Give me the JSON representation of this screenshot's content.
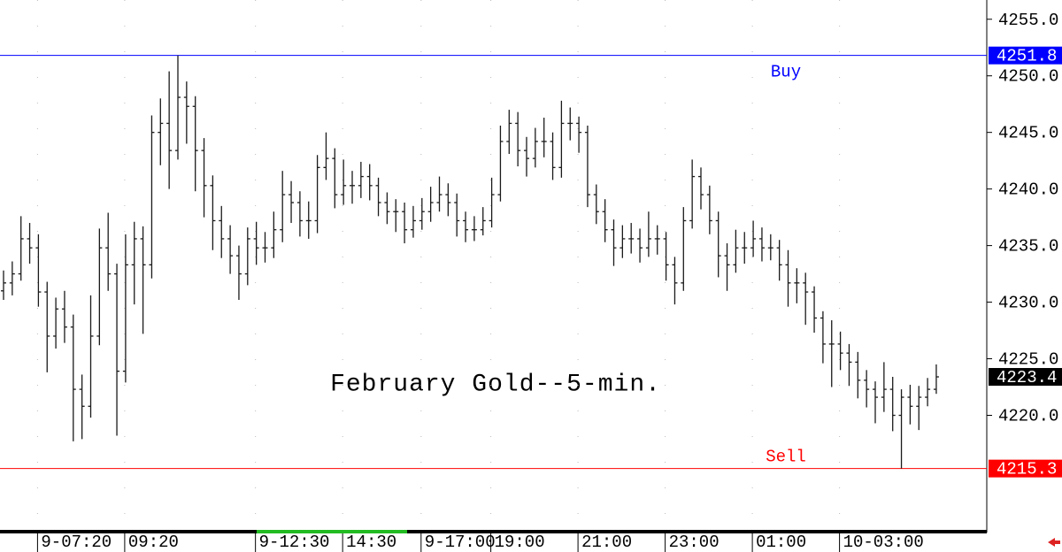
{
  "chart_data": {
    "type": "ohlc",
    "title": "February Gold--5-min.",
    "color": "#1a1a1a",
    "close_tag_color": "#000000",
    "categories": [
      null,
      null,
      null,
      null,
      "9-07:20",
      null,
      null,
      null,
      null,
      null,
      null,
      null,
      null,
      null,
      "09:20",
      null,
      null,
      null,
      null,
      null,
      null,
      null,
      null,
      null,
      null,
      null,
      null,
      null,
      null,
      "9-12:30",
      null,
      null,
      null,
      null,
      null,
      null,
      null,
      null,
      null,
      "14:30",
      null,
      null,
      null,
      null,
      null,
      null,
      null,
      null,
      "9-17:00",
      null,
      null,
      null,
      null,
      null,
      null,
      null,
      "19:00",
      null,
      null,
      null,
      null,
      null,
      null,
      null,
      null,
      null,
      "21:00",
      null,
      null,
      null,
      null,
      null,
      null,
      null,
      null,
      null,
      "23:00",
      null,
      null,
      null,
      null,
      null,
      null,
      null,
      null,
      null,
      "01:00",
      null,
      null,
      null,
      null,
      null,
      null,
      null,
      null,
      null,
      "10-03:00",
      null,
      null,
      null,
      null,
      null,
      null,
      null,
      null,
      null,
      null,
      null
    ],
    "open": [
      4231.0,
      4231.7,
      4232.5,
      4235.6,
      4234.8,
      4230.9,
      4227.0,
      4229.4,
      4227.8,
      4222.3,
      4220.8,
      4227.0,
      4234.8,
      4232.5,
      4223.9,
      4233.3,
      4235.6,
      4233.3,
      4245.0,
      4245.8,
      4243.4,
      4248.1,
      4247.3,
      4243.4,
      4240.3,
      4237.2,
      4235.6,
      4234.1,
      4232.5,
      4235.6,
      4234.8,
      4234.8,
      4236.4,
      4239.5,
      4238.8,
      4237.2,
      4237.2,
      4241.9,
      4242.7,
      4239.5,
      4240.3,
      4240.3,
      4241.1,
      4240.3,
      4238.8,
      4238.0,
      4238.0,
      4236.4,
      4237.2,
      4238.0,
      4238.8,
      4239.5,
      4238.8,
      4237.2,
      4236.4,
      4236.4,
      4237.2,
      4239.5,
      4244.2,
      4245.8,
      4243.4,
      4242.7,
      4244.2,
      4244.2,
      4241.9,
      4245.8,
      4245.8,
      4245.0,
      4239.5,
      4238.0,
      4236.4,
      4234.8,
      4235.6,
      4235.6,
      4234.8,
      4235.6,
      4235.6,
      4233.3,
      4231.7,
      4237.2,
      4241.1,
      4239.5,
      4237.2,
      4234.1,
      4233.3,
      4234.8,
      4234.8,
      4235.6,
      4234.8,
      4234.8,
      4233.3,
      4231.7,
      4231.7,
      4230.9,
      4228.6,
      4226.3,
      4226.3,
      4225.5,
      4224.7,
      4223.1,
      4222.3,
      4221.6,
      4222.3,
      4220.0,
      4221.6,
      4220.8,
      4221.6,
      4222.3
    ],
    "high": [
      4232.8,
      4233.6,
      4237.6,
      4237.0,
      4236.0,
      4231.8,
      4230.4,
      4231.0,
      4228.9,
      4223.6,
      4230.6,
      4236.5,
      4237.9,
      4233.4,
      4236.0,
      4237.1,
      4236.7,
      4246.5,
      4248.0,
      4250.4,
      4251.8,
      4249.5,
      4248.2,
      4244.5,
      4241.2,
      4238.5,
      4236.8,
      4235.0,
      4236.6,
      4237.1,
      4236.2,
      4238.0,
      4241.6,
      4240.7,
      4239.8,
      4238.9,
      4243.0,
      4245.0,
      4243.6,
      4242.6,
      4241.6,
      4242.4,
      4242.2,
      4241.0,
      4239.7,
      4239.1,
      4238.8,
      4238.5,
      4239.2,
      4240.2,
      4241.1,
      4240.5,
      4239.6,
      4238.0,
      4237.6,
      4238.4,
      4241.0,
      4245.6,
      4247.0,
      4246.8,
      4244.6,
      4245.4,
      4246.3,
      4245.0,
      4247.8,
      4247.2,
      4246.4,
      4245.6,
      4240.4,
      4239.1,
      4237.3,
      4236.8,
      4237.0,
      4236.5,
      4238.0,
      4236.8,
      4236.2,
      4234.0,
      4238.4,
      4242.6,
      4241.9,
      4240.3,
      4238.0,
      4235.2,
      4236.4,
      4236.2,
      4237.2,
      4236.6,
      4236.0,
      4235.5,
      4234.6,
      4233.0,
      4232.6,
      4231.4,
      4229.2,
      4228.4,
      4227.4,
      4226.3,
      4225.6,
      4224.0,
      4223.0,
      4224.7,
      4223.4,
      4222.3,
      4222.7,
      4222.6,
      4223.3,
      4224.5
    ],
    "low": [
      4230.2,
      4230.6,
      4231.9,
      4233.4,
      4229.6,
      4223.8,
      4225.9,
      4226.4,
      4217.7,
      4217.9,
      4219.8,
      4226.2,
      4231.0,
      4218.2,
      4222.9,
      4229.8,
      4227.2,
      4232.1,
      4242.1,
      4240.0,
      4242.6,
      4244.0,
      4239.8,
      4237.5,
      4234.6,
      4233.9,
      4232.5,
      4230.2,
      4231.5,
      4233.3,
      4233.5,
      4233.9,
      4235.3,
      4237.0,
      4235.8,
      4235.6,
      4236.1,
      4240.8,
      4238.3,
      4238.6,
      4238.7,
      4239.2,
      4239.0,
      4237.6,
      4236.9,
      4236.2,
      4235.2,
      4235.7,
      4236.4,
      4237.1,
      4238.0,
      4237.6,
      4235.8,
      4235.3,
      4235.4,
      4235.9,
      4236.6,
      4238.9,
      4243.1,
      4242.0,
      4241.1,
      4241.9,
      4242.8,
      4240.8,
      4241.0,
      4244.3,
      4243.2,
      4238.4,
      4236.9,
      4235.3,
      4233.2,
      4233.9,
      4234.3,
      4233.5,
      4234.0,
      4234.2,
      4231.9,
      4229.8,
      4231.0,
      4236.5,
      4238.2,
      4236.0,
      4232.2,
      4231.0,
      4232.6,
      4233.4,
      4234.0,
      4233.6,
      4233.7,
      4231.9,
      4229.6,
      4229.9,
      4228.0,
      4227.3,
      4224.6,
      4222.5,
      4224.0,
      4222.6,
      4221.5,
      4220.7,
      4219.3,
      4220.3,
      4218.6,
      4215.3,
      4219.2,
      4218.7,
      4220.8,
      4221.9
    ],
    "close": [
      4231.7,
      4232.5,
      4235.6,
      4234.8,
      4230.9,
      4227.0,
      4229.4,
      4227.8,
      4222.3,
      4220.8,
      4227.0,
      4234.8,
      4232.5,
      4223.9,
      4233.3,
      4235.6,
      4233.3,
      4245.0,
      4245.8,
      4243.4,
      4248.1,
      4247.3,
      4243.4,
      4240.3,
      4237.2,
      4235.6,
      4234.1,
      4232.5,
      4235.6,
      4234.8,
      4234.8,
      4236.4,
      4239.5,
      4238.8,
      4237.2,
      4237.2,
      4241.9,
      4242.7,
      4239.5,
      4240.3,
      4240.3,
      4241.1,
      4240.3,
      4238.8,
      4238.0,
      4238.0,
      4236.4,
      4237.2,
      4238.0,
      4238.8,
      4239.5,
      4238.8,
      4237.2,
      4236.4,
      4236.4,
      4237.2,
      4239.5,
      4244.2,
      4245.8,
      4243.4,
      4242.7,
      4244.2,
      4244.2,
      4241.9,
      4245.8,
      4245.8,
      4245.0,
      4239.5,
      4238.0,
      4236.4,
      4234.8,
      4235.6,
      4235.6,
      4234.8,
      4235.6,
      4235.6,
      4233.3,
      4231.7,
      4237.2,
      4241.1,
      4239.5,
      4237.2,
      4234.1,
      4233.3,
      4234.8,
      4234.8,
      4235.6,
      4234.8,
      4234.8,
      4233.3,
      4231.7,
      4231.7,
      4230.9,
      4228.6,
      4226.3,
      4226.3,
      4225.5,
      4224.7,
      4223.1,
      4222.3,
      4221.6,
      4222.3,
      4220.0,
      4221.6,
      4220.8,
      4221.6,
      4222.3,
      4223.4
    ],
    "ylim": [
      4209.8,
      4256.7
    ],
    "yticks": [
      {
        "value": 4220,
        "label": "4220.0"
      },
      {
        "value": 4225,
        "label": "4225.0"
      },
      {
        "value": 4230,
        "label": "4230.0"
      },
      {
        "value": 4235,
        "label": "4235.0"
      },
      {
        "value": 4240,
        "label": "4240.0"
      },
      {
        "value": 4245,
        "label": "4245.0"
      },
      {
        "value": 4250,
        "label": "4250.0"
      },
      {
        "value": 4255,
        "label": "4255.0"
      }
    ],
    "levels": [
      {
        "label": "Buy",
        "value": 4251.8,
        "color": "#0000ff"
      },
      {
        "label": "Sell",
        "value": 4215.3,
        "color": "#ff0000"
      }
    ]
  }
}
